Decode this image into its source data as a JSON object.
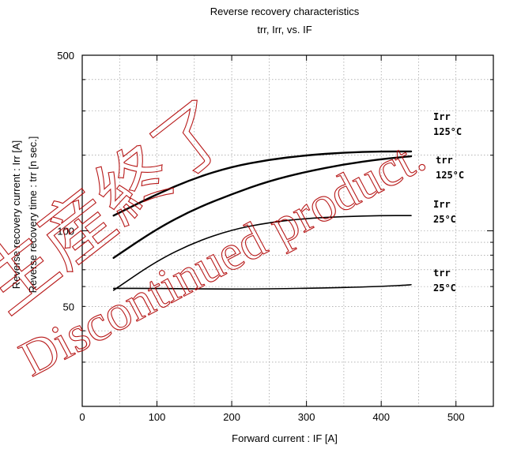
{
  "chart_data": {
    "type": "line",
    "title": "Reverse recovery characteristics",
    "subtitle": "trr,  Irr,  vs.  IF",
    "xlabel": "Forward current  :  IF [A]",
    "ylabel_current": "Reverse recovery current  :  Irr [A]",
    "ylabel_time": "Reverse recovery time  :  trr [n sec.]",
    "xlim": [
      0,
      550
    ],
    "ylim": [
      20,
      500
    ],
    "yscale": "log",
    "grid": true,
    "x_ticks": [
      "0",
      "100",
      "200",
      "300",
      "400",
      "500"
    ],
    "x_tick_values": [
      0,
      100,
      200,
      300,
      400,
      500
    ],
    "y_ticks": [
      "500",
      "100",
      "50"
    ],
    "y_tick_values": [
      500,
      100,
      50
    ],
    "series": [
      {
        "name": "Irr 125°C",
        "label_lines": [
          "Irr",
          "125°C"
        ],
        "x": [
          42,
          100,
          150,
          200,
          250,
          300,
          350,
          400,
          440
        ],
        "y": [
          115,
          140,
          162,
          180,
          192,
          200,
          205,
          207,
          207
        ]
      },
      {
        "name": "trr 125°C",
        "label_lines": [
          "trr",
          "125°C"
        ],
        "x": [
          42,
          100,
          150,
          200,
          250,
          300,
          350,
          400,
          440
        ],
        "y": [
          78,
          102,
          122,
          140,
          158,
          172,
          184,
          193,
          198
        ]
      },
      {
        "name": "Irr 25°C",
        "label_lines": [
          "Irr",
          "25°C"
        ],
        "x": [
          42,
          100,
          150,
          200,
          250,
          300,
          350,
          400,
          440
        ],
        "y": [
          58,
          76,
          90,
          101,
          108,
          112,
          114,
          115,
          115
        ]
      },
      {
        "name": "trr 25°C",
        "label_lines": [
          "trr",
          "25°C"
        ],
        "x": [
          42,
          100,
          200,
          300,
          400,
          440
        ],
        "y": [
          59,
          59,
          58.5,
          59,
          60,
          61
        ]
      }
    ],
    "watermark_lines": [
      "生産終了",
      "Discontinued product."
    ]
  }
}
